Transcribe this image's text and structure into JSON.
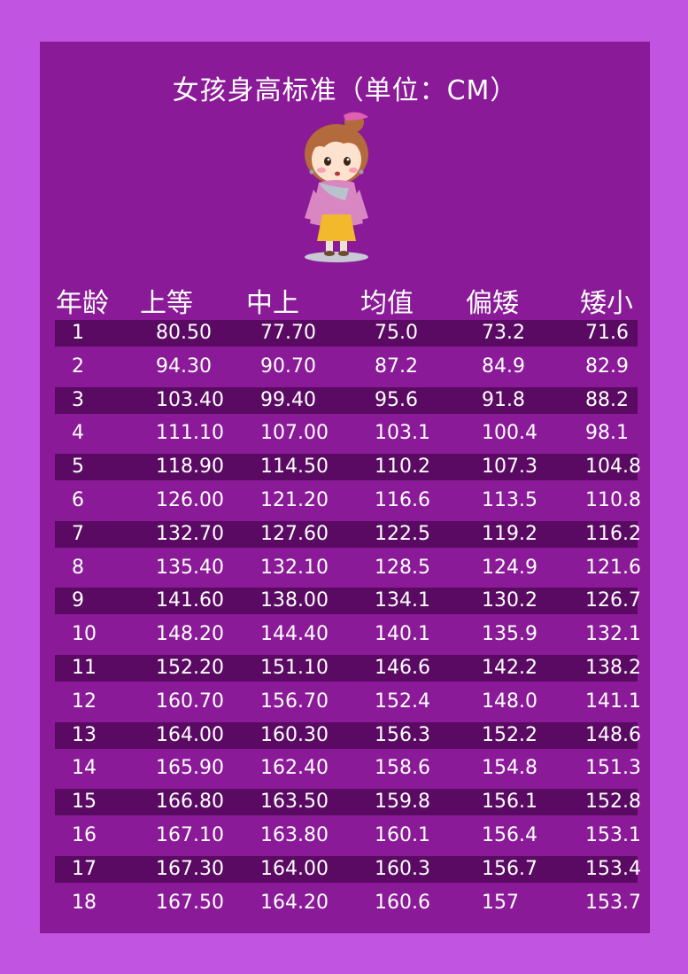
{
  "title": "女孩身高标准（单位：CM）",
  "icons": {
    "mascot": "cartoon-girl-illustration"
  },
  "colors": {
    "background": "#c254e2",
    "panel": "#8a1a97",
    "stripe": "#5a0a63",
    "text": "#ffffff"
  },
  "table": {
    "headers": [
      "年龄",
      "上等",
      "中上",
      "均值",
      "偏矮",
      "矮小"
    ],
    "rows": [
      [
        "1",
        "80.50",
        "77.70",
        "75.0",
        "73.2",
        "71.6"
      ],
      [
        "2",
        "94.30",
        "90.70",
        "87.2",
        "84.9",
        "82.9"
      ],
      [
        "3",
        "103.40",
        "99.40",
        "95.6",
        "91.8",
        "88.2"
      ],
      [
        "4",
        "111.10",
        "107.00",
        "103.1",
        "100.4",
        "98.1"
      ],
      [
        "5",
        "118.90",
        "114.50",
        "110.2",
        "107.3",
        "104.8"
      ],
      [
        "6",
        "126.00",
        "121.20",
        "116.6",
        "113.5",
        "110.8"
      ],
      [
        "7",
        "132.70",
        "127.60",
        "122.5",
        "119.2",
        "116.2"
      ],
      [
        "8",
        "135.40",
        "132.10",
        "128.5",
        "124.9",
        "121.6"
      ],
      [
        "9",
        "141.60",
        "138.00",
        "134.1",
        "130.2",
        "126.7"
      ],
      [
        "10",
        "148.20",
        "144.40",
        "140.1",
        "135.9",
        "132.1"
      ],
      [
        "11",
        "152.20",
        "151.10",
        "146.6",
        "142.2",
        "138.2"
      ],
      [
        "12",
        "160.70",
        "156.70",
        "152.4",
        "148.0",
        "141.1"
      ],
      [
        "13",
        "164.00",
        "160.30",
        "156.3",
        "152.2",
        "148.6"
      ],
      [
        "14",
        "165.90",
        "162.40",
        "158.6",
        "154.8",
        "151.3"
      ],
      [
        "15",
        "166.80",
        "163.50",
        "159.8",
        "156.1",
        "152.8"
      ],
      [
        "16",
        "167.10",
        "163.80",
        "160.1",
        "156.4",
        "153.1"
      ],
      [
        "17",
        "167.30",
        "164.00",
        "160.3",
        "156.7",
        "153.4"
      ],
      [
        "18",
        "167.50",
        "164.20",
        "160.6",
        "157",
        "153.7"
      ]
    ]
  }
}
